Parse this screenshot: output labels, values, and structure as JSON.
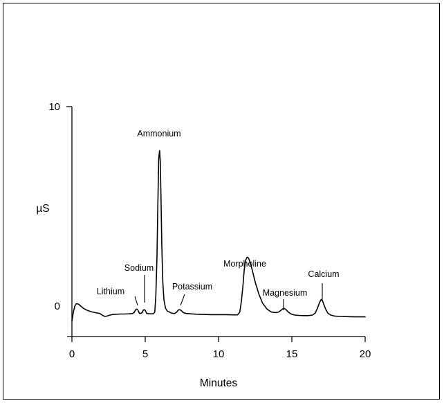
{
  "chart_data": {
    "type": "line",
    "title": "",
    "xlabel": "Minutes",
    "ylabel": "µS",
    "xlim": [
      0,
      20
    ],
    "ylim": [
      -1,
      10
    ],
    "x_ticks": [
      0,
      5,
      10,
      15,
      20
    ],
    "y_ticks": [
      0,
      10
    ],
    "grid": false,
    "legend": "none",
    "line_color": "#000000",
    "series": [
      {
        "x": [
          0,
          0.1,
          0.2,
          0.3,
          0.45,
          0.6,
          0.8,
          1.0,
          1.3,
          1.6,
          1.9,
          2.1,
          2.25,
          2.4,
          2.6,
          2.8,
          3.0,
          3.3,
          3.6,
          3.9,
          4.1,
          4.25,
          4.35,
          4.42,
          4.5,
          4.6,
          4.7,
          4.8,
          4.87,
          4.93,
          5.0,
          5.1,
          5.25,
          5.4,
          5.55,
          5.65,
          5.72,
          5.8,
          5.86,
          5.92,
          5.98,
          6.03,
          6.08,
          6.13,
          6.2,
          6.28,
          6.38,
          6.5,
          6.65,
          6.8,
          7.0,
          7.15,
          7.25,
          7.35,
          7.45,
          7.6,
          7.8,
          8.1,
          8.5,
          9.0,
          9.5,
          10.0,
          10.5,
          11.0,
          11.3,
          11.45,
          11.55,
          11.65,
          11.75,
          11.85,
          11.95,
          12.05,
          12.15,
          12.3,
          12.5,
          12.75,
          13.0,
          13.3,
          13.6,
          13.9,
          14.1,
          14.25,
          14.4,
          14.5,
          14.6,
          14.75,
          14.95,
          15.2,
          15.5,
          15.8,
          16.1,
          16.4,
          16.6,
          16.75,
          16.9,
          17.0,
          17.1,
          17.2,
          17.3,
          17.45,
          17.65,
          17.9,
          18.3,
          18.8,
          19.4,
          20.0
        ],
        "values": [
          -0.75,
          -0.3,
          0.0,
          0.12,
          0.1,
          0.0,
          -0.12,
          -0.2,
          -0.28,
          -0.33,
          -0.37,
          -0.47,
          -0.52,
          -0.5,
          -0.45,
          -0.42,
          -0.41,
          -0.4,
          -0.4,
          -0.39,
          -0.38,
          -0.32,
          -0.18,
          -0.15,
          -0.2,
          -0.36,
          -0.37,
          -0.32,
          -0.2,
          -0.18,
          -0.22,
          -0.37,
          -0.39,
          -0.39,
          -0.39,
          -0.3,
          0.5,
          2.5,
          5.0,
          7.4,
          7.8,
          7.2,
          5.2,
          3.0,
          1.2,
          0.3,
          -0.1,
          -0.25,
          -0.3,
          -0.35,
          -0.38,
          -0.3,
          -0.2,
          -0.18,
          -0.22,
          -0.33,
          -0.37,
          -0.39,
          -0.41,
          -0.42,
          -0.43,
          -0.43,
          -0.43,
          -0.44,
          -0.44,
          -0.3,
          0.2,
          0.9,
          1.8,
          2.3,
          2.45,
          2.4,
          2.2,
          1.8,
          1.2,
          0.6,
          0.15,
          -0.15,
          -0.3,
          -0.33,
          -0.3,
          -0.22,
          -0.13,
          -0.12,
          -0.18,
          -0.3,
          -0.4,
          -0.45,
          -0.47,
          -0.48,
          -0.48,
          -0.45,
          -0.35,
          -0.1,
          0.2,
          0.33,
          0.25,
          0.05,
          -0.15,
          -0.35,
          -0.45,
          -0.5,
          -0.52,
          -0.53,
          -0.54,
          -0.54
        ]
      }
    ],
    "annotations": [
      {
        "text": "Lithium",
        "x": 4.4,
        "y": -0.15
      },
      {
        "text": "Sodium",
        "x": 4.93,
        "y": -0.18
      },
      {
        "text": "Ammonium",
        "x": 5.98,
        "y": 7.8
      },
      {
        "text": "Potassium",
        "x": 7.35,
        "y": -0.18
      },
      {
        "text": "Morpholine",
        "x": 11.95,
        "y": 2.45
      },
      {
        "text": "Magnesium",
        "x": 14.5,
        "y": -0.12
      },
      {
        "text": "Calcium",
        "x": 17.0,
        "y": 0.33
      }
    ]
  }
}
